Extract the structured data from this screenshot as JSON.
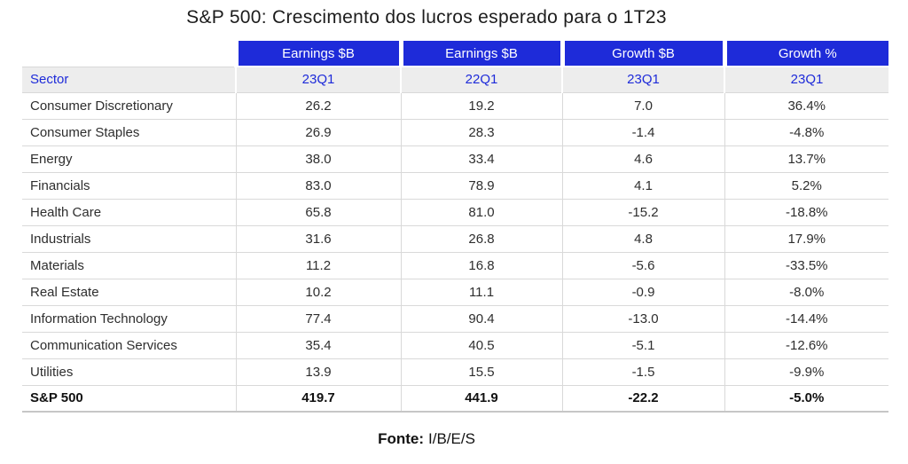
{
  "title": "S&P 500: Crescimento dos lucros esperado para o 1T23",
  "table": {
    "header_row1": [
      "",
      "Earnings $B",
      "Earnings $B",
      "Growth $B",
      "Growth %"
    ],
    "header_row2": [
      "Sector",
      "23Q1",
      "22Q1",
      "23Q1",
      "23Q1"
    ],
    "rows": [
      {
        "sector": "Consumer Discretionary",
        "values": [
          "26.2",
          "19.2",
          "7.0",
          "36.4%"
        ]
      },
      {
        "sector": "Consumer Staples",
        "values": [
          "26.9",
          "28.3",
          "-1.4",
          "-4.8%"
        ]
      },
      {
        "sector": "Energy",
        "values": [
          "38.0",
          "33.4",
          "4.6",
          "13.7%"
        ]
      },
      {
        "sector": "Financials",
        "values": [
          "83.0",
          "78.9",
          "4.1",
          "5.2%"
        ]
      },
      {
        "sector": "Health Care",
        "values": [
          "65.8",
          "81.0",
          "-15.2",
          "-18.8%"
        ]
      },
      {
        "sector": "Industrials",
        "values": [
          "31.6",
          "26.8",
          "4.8",
          "17.9%"
        ]
      },
      {
        "sector": "Materials",
        "values": [
          "11.2",
          "16.8",
          "-5.6",
          "-33.5%"
        ]
      },
      {
        "sector": "Real Estate",
        "values": [
          "10.2",
          "11.1",
          "-0.9",
          "-8.0%"
        ]
      },
      {
        "sector": "Information Technology",
        "values": [
          "77.4",
          "90.4",
          "-13.0",
          "-14.4%"
        ]
      },
      {
        "sector": "Communication Services",
        "values": [
          "35.4",
          "40.5",
          "-5.1",
          "-12.6%"
        ]
      },
      {
        "sector": "Utilities",
        "values": [
          "13.9",
          "15.5",
          "-1.5",
          "-9.9%"
        ]
      }
    ],
    "total_row": {
      "sector": "S&P 500",
      "values": [
        "419.7",
        "441.9",
        "-22.2",
        "-5.0%"
      ]
    }
  },
  "footer": {
    "label": "Fonte:",
    "value": "I/B/E/S"
  },
  "colors": {
    "header_blue": "#1e2bd9",
    "header_text": "#ffffff",
    "subheader_bg": "#ededed",
    "subheader_text": "#1e2bd9",
    "body_text": "#2e2e2e",
    "border": "#d9d9d9"
  },
  "chart_data": {
    "type": "table",
    "title": "S&P 500: Crescimento dos lucros esperado para o 1T23",
    "columns": [
      "Sector",
      "Earnings $B 23Q1",
      "Earnings $B 22Q1",
      "Growth $B 23Q1",
      "Growth % 23Q1"
    ],
    "rows": [
      [
        "Consumer Discretionary",
        26.2,
        19.2,
        7.0,
        36.4
      ],
      [
        "Consumer Staples",
        26.9,
        28.3,
        -1.4,
        -4.8
      ],
      [
        "Energy",
        38.0,
        33.4,
        4.6,
        13.7
      ],
      [
        "Financials",
        83.0,
        78.9,
        4.1,
        5.2
      ],
      [
        "Health Care",
        65.8,
        81.0,
        -15.2,
        -18.8
      ],
      [
        "Industrials",
        31.6,
        26.8,
        4.8,
        17.9
      ],
      [
        "Materials",
        11.2,
        16.8,
        -5.6,
        -33.5
      ],
      [
        "Real Estate",
        10.2,
        11.1,
        -0.9,
        -8.0
      ],
      [
        "Information Technology",
        77.4,
        90.4,
        -13.0,
        -14.4
      ],
      [
        "Communication Services",
        35.4,
        40.5,
        -5.1,
        -12.6
      ],
      [
        "Utilities",
        13.9,
        15.5,
        -1.5,
        -9.9
      ],
      [
        "S&P 500",
        419.7,
        441.9,
        -22.2,
        -5.0
      ]
    ],
    "growth_pct_unit": "%",
    "source": "I/B/E/S"
  }
}
